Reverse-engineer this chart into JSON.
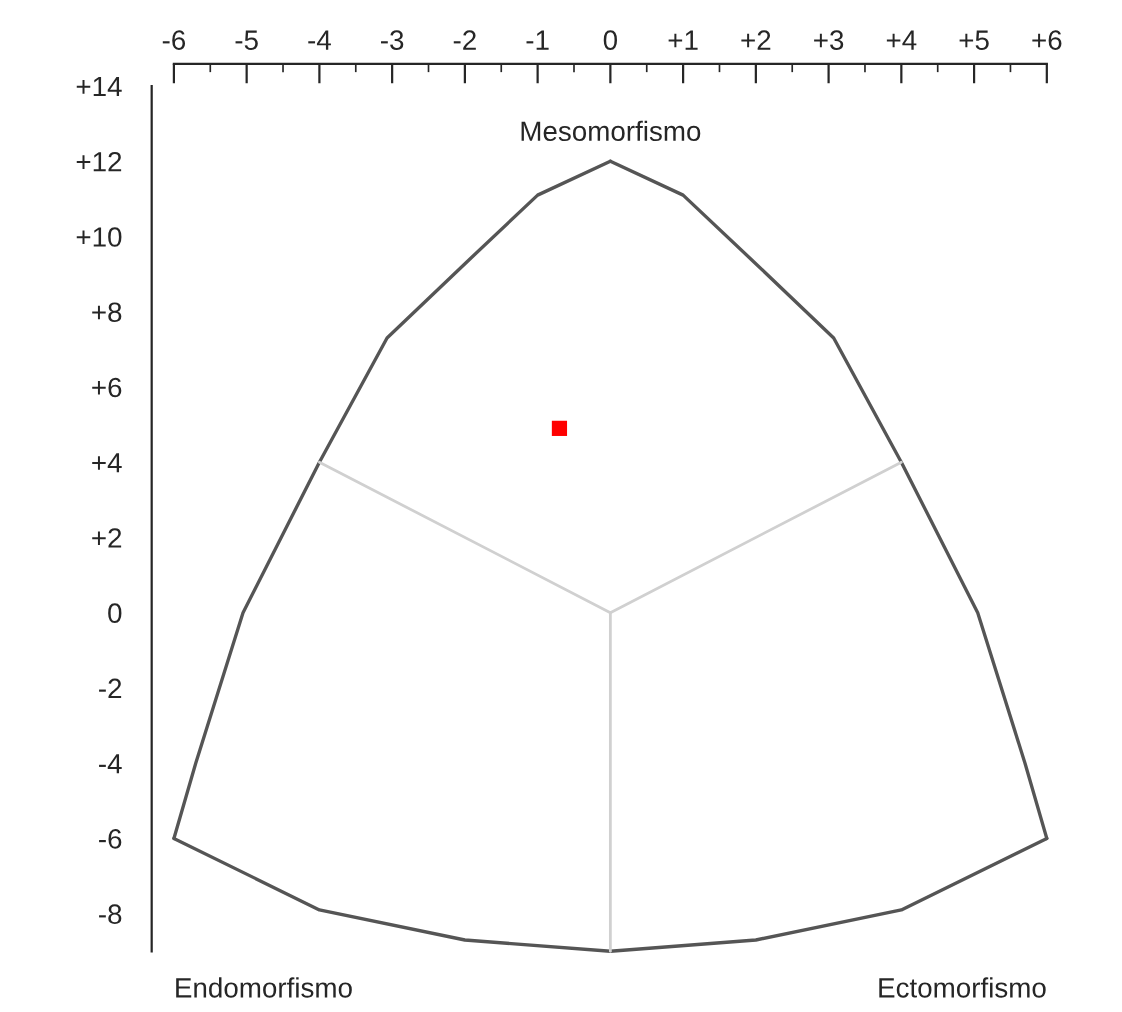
{
  "chart_data": {
    "type": "scatter",
    "xlim": [
      -6,
      6
    ],
    "ylim": [
      -9,
      14
    ],
    "xticks": [
      -6,
      -5,
      -4,
      -3,
      -2,
      -1,
      0,
      {
        "value": 1,
        "label": "+1"
      },
      {
        "value": 2,
        "label": "+2"
      },
      {
        "value": 3,
        "label": "+3"
      },
      {
        "value": 4,
        "label": "+4"
      },
      {
        "value": 5,
        "label": "+5"
      },
      {
        "value": 6,
        "label": "+6"
      }
    ],
    "yticks": [
      -8,
      -6,
      -4,
      -2,
      0,
      {
        "value": 2,
        "label": "+2"
      },
      {
        "value": 4,
        "label": "+4"
      },
      {
        "value": 6,
        "label": "+6"
      },
      {
        "value": 8,
        "label": "+8"
      },
      {
        "value": 10,
        "label": "+10"
      },
      {
        "value": 12,
        "label": "+12"
      },
      {
        "value": 14,
        "label": "+14"
      }
    ],
    "grid": false,
    "legend": false,
    "series": [
      {
        "type": "line",
        "color": "#555555",
        "marker": "none",
        "x": [
          -6,
          -5.7,
          -5.05,
          -4,
          -3.07,
          -1.97,
          -1,
          0
        ],
        "values": [
          -6,
          -4,
          0,
          4,
          7.3,
          9.33,
          11.1,
          12
        ]
      },
      {
        "type": "line",
        "color": "#555555",
        "marker": "none",
        "x": [
          0,
          1,
          1.97,
          3.07,
          4,
          5.05,
          5.7,
          6
        ],
        "values": [
          12,
          11.1,
          9.33,
          7.3,
          4,
          0,
          -4,
          -6
        ]
      },
      {
        "type": "line",
        "color": "#555555",
        "marker": "none",
        "x": [
          -6,
          -4,
          -2,
          0,
          2,
          4,
          6
        ],
        "values": [
          -6,
          -7.9,
          -8.7,
          -9,
          -8.7,
          -7.9,
          -6
        ]
      },
      {
        "type": "line",
        "color": "#d0d0d0",
        "marker": "none",
        "x": [
          -4,
          0
        ],
        "values": [
          4,
          0
        ]
      },
      {
        "type": "line",
        "color": "#d0d0d0",
        "marker": "none",
        "x": [
          0,
          4
        ],
        "values": [
          0,
          4
        ]
      },
      {
        "type": "line",
        "color": "#d0d0d0",
        "marker": "none",
        "x": [
          0,
          0
        ],
        "values": [
          -9,
          0
        ]
      },
      {
        "color": "#ff0000",
        "marker": "square",
        "x": [
          -0.7
        ],
        "values": [
          4.9
        ]
      }
    ],
    "annotations": [
      "Mesomorfismo",
      "Endomorfismo",
      "Ectomorfismo"
    ]
  }
}
